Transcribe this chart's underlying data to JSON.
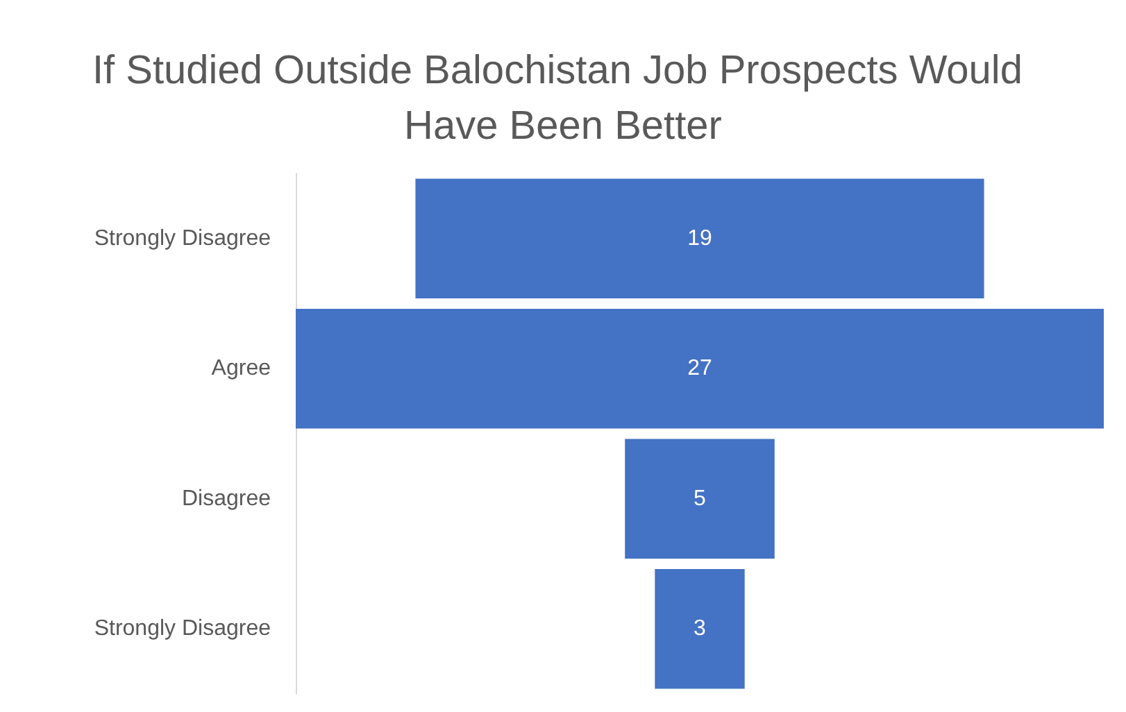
{
  "chart_data": {
    "type": "other",
    "title": "If Studied Outside Balochistan Job Prospects Would Have Been Better",
    "categories": [
      "Strongly Disagree",
      "Agree",
      "Disagree",
      "Strongly Disagree"
    ],
    "values": [
      19,
      27,
      5,
      3
    ],
    "color": "#4472c4",
    "data_labels": true
  }
}
